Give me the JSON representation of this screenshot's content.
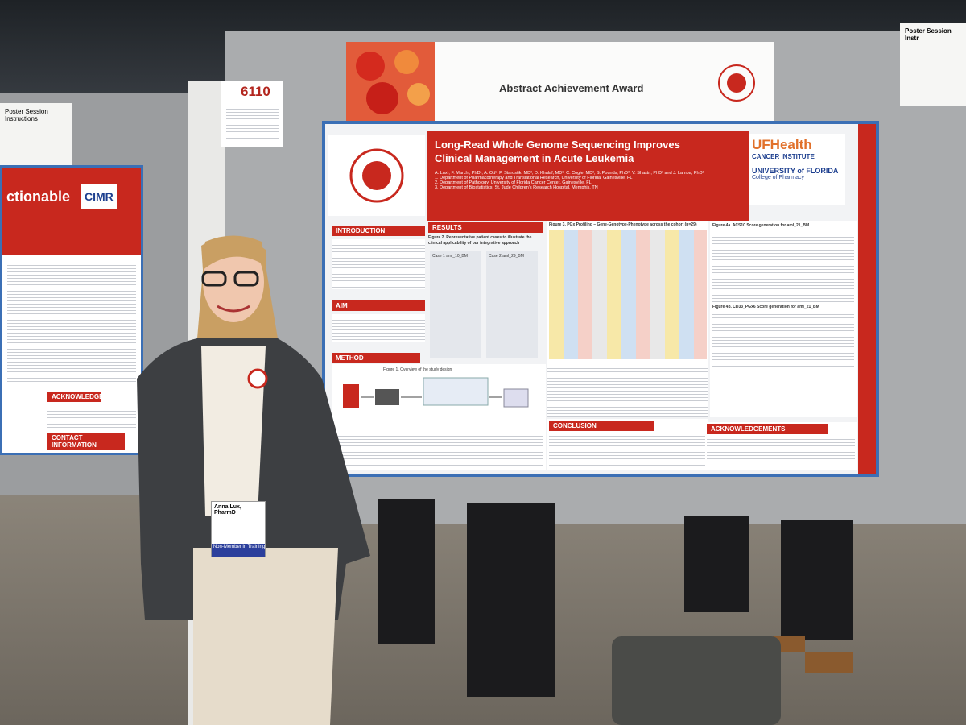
{
  "board_number": "6110",
  "award_banner": "Abstract Achievement Award",
  "poster": {
    "title": "Long-Read Whole Genome Sequencing Improves Clinical Management in Acute Leukemia",
    "authors": "A. Lux¹, F. Marchi, PhD¹, A. Ott¹, P. Starostik, MD², D. Khalaf, MD¹, C. Cogle, MD², S. Pounds, PhD³, V. Shastri, PhD¹ and J. Lamba, PhD¹",
    "affiliations": [
      "1. Department of Pharmacotherapy and Translational Research, University of Florida, Gainesville, FL",
      "2. Department of Pathology, University of Florida Cancer Center, Gainesville, FL",
      "3. Department of Biostatistics, St. Jude Children's Research Hospital, Memphis, TN"
    ],
    "logo": {
      "line1": "UFHealth",
      "line2": "CANCER INSTITUTE",
      "line3": "UNIVERSITY of FLORIDA",
      "line4": "College of Pharmacy"
    },
    "sections": {
      "introduction": "INTRODUCTION",
      "aim": "AIM",
      "method": "METHOD",
      "results": "RESULTS",
      "conclusion": "CONCLUSION",
      "acknowledgements": "ACKNOWLEDGEMENTS"
    },
    "figures": {
      "fig2": "Figure 2. Representative patient cases to illustrate the clinical applicability of our integrative approach",
      "fig3": "Figure 3. PGx Profiling – Gene-Genotype-Phenotype across the cohort (n=29)",
      "fig4a": "Figure 4a. ACS10 Score generation for aml_21_BM",
      "fig4b": "Figure 4b. CD33_PGx6 Score generation for aml_21_BM",
      "fig1": "Figure 1. Overview of the study design"
    },
    "cases": [
      "Case 1 aml_10_BM",
      "Case 2 aml_29_BM"
    ]
  },
  "left_poster": {
    "title_fragment": "ctionable",
    "logo": "CIMR",
    "acknowledgements": "ACKNOWLEDGEMENTS",
    "contact": "CONTACT INFORMATION"
  },
  "side_signs": {
    "left": "Poster Session Instructions",
    "right": "Poster Session Instr"
  },
  "badge": {
    "name": "Anna Lux, PharmD",
    "ribbon": "Non-Member in Training"
  }
}
